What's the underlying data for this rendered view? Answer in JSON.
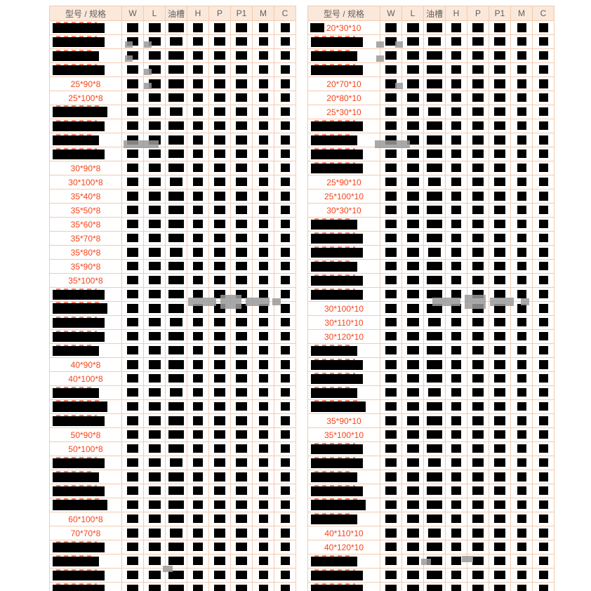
{
  "columns": [
    "型号 / 规格",
    "W",
    "L",
    "油槽",
    "H",
    "P",
    "P1",
    "M",
    "C"
  ],
  "colors": {
    "accent_text": "#f8441a",
    "header_bg": "#fae8da",
    "grid_border": "#f2cbb1",
    "redaction": "#000000",
    "watermark_gray": "#9a9a9a"
  },
  "left_table": {
    "rows": [
      {
        "m": null
      },
      {
        "m": null
      },
      {
        "m": null
      },
      {
        "m": null
      },
      {
        "m": "25*90*8"
      },
      {
        "m": "25*100*8"
      },
      {
        "m": null
      },
      {
        "m": null
      },
      {
        "m": null
      },
      {
        "m": null
      },
      {
        "m": "30*90*8"
      },
      {
        "m": "30*100*8"
      },
      {
        "m": "35*40*8"
      },
      {
        "m": "35*50*8"
      },
      {
        "m": "35*60*8"
      },
      {
        "m": "35*70*8"
      },
      {
        "m": "35*80*8"
      },
      {
        "m": "35*90*8"
      },
      {
        "m": "35*100*8"
      },
      {
        "m": null
      },
      {
        "m": null
      },
      {
        "m": null
      },
      {
        "m": null
      },
      {
        "m": null
      },
      {
        "m": "40*90*8"
      },
      {
        "m": "40*100*8"
      },
      {
        "m": null
      },
      {
        "m": null
      },
      {
        "m": null
      },
      {
        "m": "50*90*8"
      },
      {
        "m": "50*100*8"
      },
      {
        "m": null
      },
      {
        "m": null
      },
      {
        "m": null
      },
      {
        "m": null
      },
      {
        "m": "60*100*8"
      },
      {
        "m": "70*70*8"
      },
      {
        "m": null
      },
      {
        "m": null
      },
      {
        "m": null
      },
      {
        "m": null
      }
    ]
  },
  "right_table": {
    "rows": [
      {
        "m": "20*30*10",
        "mixed": true
      },
      {
        "m": null
      },
      {
        "m": null
      },
      {
        "m": null
      },
      {
        "m": "20*70*10"
      },
      {
        "m": "20*80*10"
      },
      {
        "m": "25*30*10"
      },
      {
        "m": null
      },
      {
        "m": null
      },
      {
        "m": null
      },
      {
        "m": null
      },
      {
        "m": "25*90*10"
      },
      {
        "m": "25*100*10"
      },
      {
        "m": "30*30*10"
      },
      {
        "m": null
      },
      {
        "m": null
      },
      {
        "m": null
      },
      {
        "m": null
      },
      {
        "m": null
      },
      {
        "m": null
      },
      {
        "m": "30*100*10"
      },
      {
        "m": "30*110*10"
      },
      {
        "m": "30*120*10"
      },
      {
        "m": null
      },
      {
        "m": null
      },
      {
        "m": null
      },
      {
        "m": null
      },
      {
        "m": null
      },
      {
        "m": "35*90*10"
      },
      {
        "m": "35*100*10"
      },
      {
        "m": null
      },
      {
        "m": null
      },
      {
        "m": null
      },
      {
        "m": null
      },
      {
        "m": null
      },
      {
        "m": null
      },
      {
        "m": "40*110*10"
      },
      {
        "m": "40*120*10"
      },
      {
        "m": null
      },
      {
        "m": null
      },
      {
        "m": null
      }
    ]
  }
}
